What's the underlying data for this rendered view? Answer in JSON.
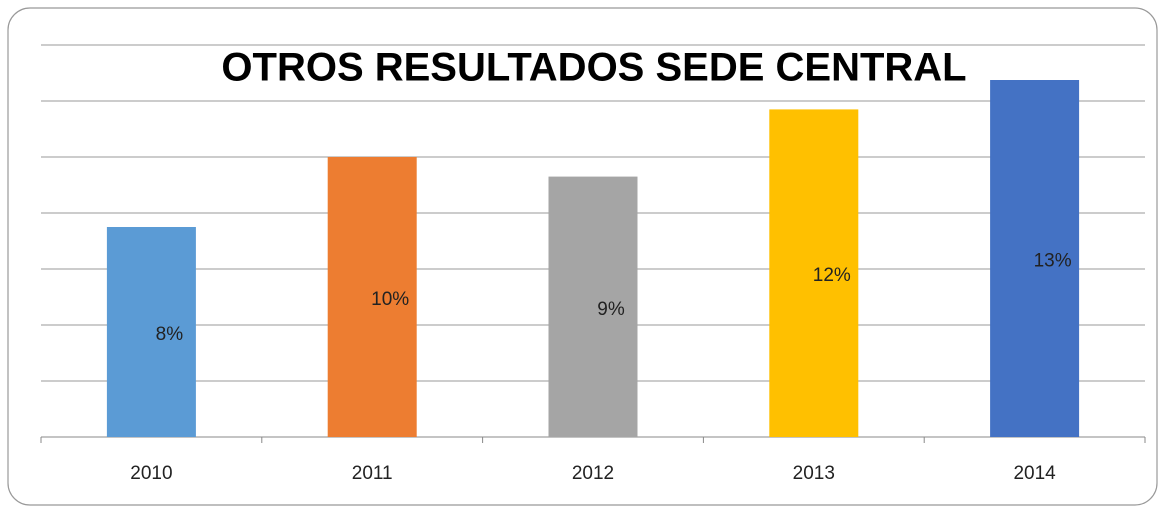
{
  "chart_data": {
    "type": "bar",
    "title": "OTROS RESULTADOS SEDE CENTRAL",
    "categories": [
      "2010",
      "2011",
      "2012",
      "2013",
      "2014"
    ],
    "values": [
      7.5,
      10,
      9.3,
      11.7,
      12.75
    ],
    "value_labels": [
      "8%",
      "10%",
      "9%",
      "12%",
      "13%"
    ],
    "colors": [
      "#5b9bd5",
      "#ed7d31",
      "#a5a5a5",
      "#ffc000",
      "#4472c4"
    ],
    "ylim": [
      0,
      14
    ],
    "yticks": [
      0,
      2,
      4,
      6,
      8,
      10,
      12,
      14
    ],
    "grid": true
  }
}
